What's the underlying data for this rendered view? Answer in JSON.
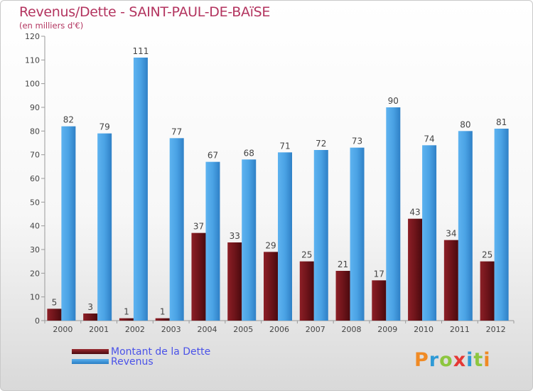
{
  "header": {
    "title": "Revenus/Dette - SAINT-PAUL-DE-BAïSE",
    "subtitle": "(en milliers d'€)"
  },
  "chart_data": {
    "type": "bar",
    "title": "Revenus/Dette - SAINT-PAUL-DE-BAïSE",
    "subtitle": "(en milliers d'€)",
    "categories": [
      "2000",
      "2001",
      "2002",
      "2003",
      "2004",
      "2005",
      "2006",
      "2007",
      "2008",
      "2009",
      "2010",
      "2011",
      "2012"
    ],
    "series": [
      {
        "name": "Montant de la Dette",
        "color": "#7a1a1f",
        "values": [
          5,
          3,
          1,
          1,
          37,
          33,
          29,
          25,
          21,
          17,
          43,
          34,
          25
        ]
      },
      {
        "name": "Revenus",
        "color": "#3d95dc",
        "values": [
          82,
          79,
          111,
          77,
          67,
          68,
          71,
          72,
          73,
          90,
          74,
          80,
          81
        ]
      }
    ],
    "ylim": [
      0,
      120
    ],
    "yticks": [
      0,
      10,
      20,
      30,
      40,
      50,
      60,
      70,
      80,
      90,
      100,
      110,
      120
    ],
    "grid": false,
    "legend": "bottom-left",
    "data_labels": true
  },
  "legend": {
    "items": [
      {
        "label": "Montant de la Dette",
        "color": "#7a1a1f"
      },
      {
        "label": "Revenus",
        "color": "#3d95dc"
      }
    ]
  },
  "brand": {
    "letters": [
      {
        "ch": "P",
        "color": "#f08a24"
      },
      {
        "ch": "r",
        "color": "#2e9ad6"
      },
      {
        "ch": "o",
        "color": "#8dc63f"
      },
      {
        "ch": "x",
        "color": "#e53935"
      },
      {
        "ch": "i",
        "color": "#2e9ad6"
      },
      {
        "ch": "t",
        "color": "#8dc63f"
      },
      {
        "ch": "i",
        "color": "#f08a24"
      }
    ]
  }
}
